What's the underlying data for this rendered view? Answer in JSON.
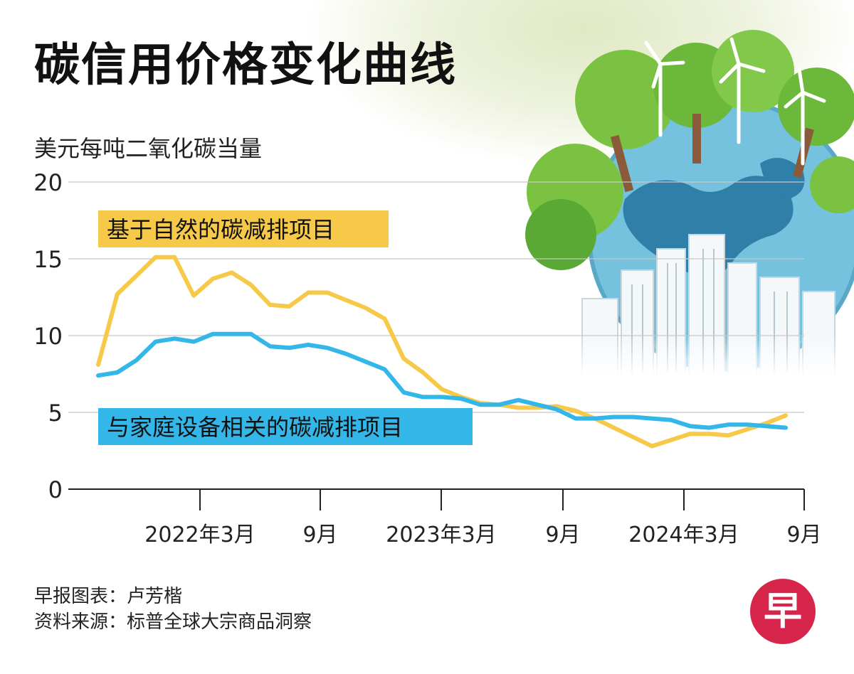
{
  "title": "碳信用价格变化曲线",
  "unit_label": "美元每吨二氧化碳当量",
  "credits": {
    "author": "早报图表：卢芳楷",
    "source": "资料来源：标普全球大宗商品洞察"
  },
  "logo": {
    "glyph": "早",
    "color": "#d6244a",
    "icon": "zaobao-logo"
  },
  "illustration": {
    "icon": "earth-trees-wind-turbines-city-icon"
  },
  "chart_data": {
    "type": "line",
    "ylim": [
      0,
      20
    ],
    "yticks": [
      0,
      5,
      10,
      15,
      20
    ],
    "ytick_labels": [
      "0",
      "5",
      "10",
      "15",
      "20"
    ],
    "xtick_labels": [
      "2022年3月",
      "9月",
      "2023年3月",
      "9月",
      "2024年3月",
      "9月"
    ],
    "xtick_index": [
      6,
      12,
      18,
      24,
      30,
      36
    ],
    "x_count": 37,
    "grid": true,
    "series": [
      {
        "name": "基于自然的碳减排项目",
        "color": "#f7c948",
        "label_bg": "#f7c948",
        "values": [
          8.1,
          12.7,
          13.9,
          15.1,
          15.1,
          12.6,
          13.7,
          14.1,
          13.3,
          12.0,
          11.9,
          12.8,
          12.8,
          12.3,
          11.8,
          11.1,
          8.5,
          7.6,
          6.5,
          6.0,
          5.6,
          5.5,
          5.3,
          5.3,
          5.4,
          5.1,
          4.6,
          4.0,
          3.4,
          2.8,
          3.2,
          3.6,
          3.6,
          3.5,
          3.9,
          4.3,
          4.8
        ]
      },
      {
        "name": "与家庭设备相关的碳减排项目",
        "color": "#33b6e8",
        "label_bg": "#33b6e8",
        "values": [
          7.4,
          7.6,
          8.4,
          9.6,
          9.8,
          9.6,
          10.1,
          10.1,
          10.1,
          9.3,
          9.2,
          9.4,
          9.2,
          8.8,
          8.3,
          7.8,
          6.3,
          6.0,
          6.0,
          5.9,
          5.5,
          5.5,
          5.8,
          5.5,
          5.2,
          4.6,
          4.6,
          4.7,
          4.7,
          4.6,
          4.5,
          4.1,
          4.0,
          4.2,
          4.2,
          4.1,
          4.0
        ]
      }
    ]
  }
}
